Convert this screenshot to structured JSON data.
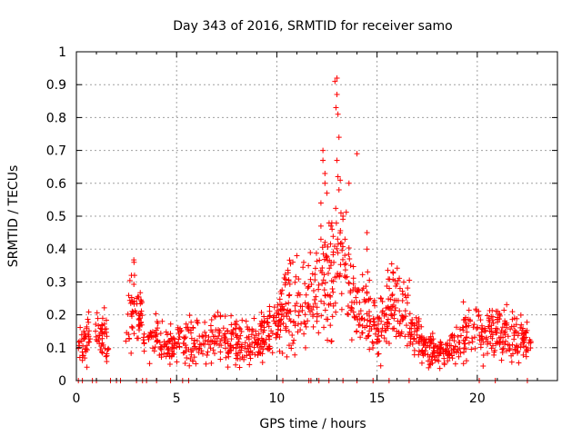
{
  "chart_data": {
    "type": "scatter",
    "title": "Day 343 of 2016, SRMTID for receiver samo",
    "xlabel": "GPS time / hours",
    "ylabel": "SRMTID / TECUs",
    "xlim": [
      0,
      24
    ],
    "ylim": [
      0,
      1
    ],
    "xticks": [
      0,
      5,
      10,
      15,
      20
    ],
    "yticks": [
      0,
      0.1,
      0.2,
      0.3,
      0.4,
      0.5,
      0.6,
      0.7,
      0.8,
      0.9,
      1
    ],
    "xtick_labels": [
      "0",
      "5",
      "10",
      "15",
      "20"
    ],
    "ytick_labels": [
      "0",
      "0.1",
      "0.2",
      "0.3",
      "0.4",
      "0.5",
      "0.6",
      "0.7",
      "0.8",
      "0.9",
      "1"
    ],
    "grid": true,
    "marker": "+",
    "color": "#ff0000",
    "series": [
      {
        "name": "SRMTID",
        "profile_x": [
          0.1,
          0.5,
          1.0,
          1.2,
          1.5,
          2.5,
          2.9,
          3.1,
          3.5,
          4.0,
          4.5,
          5.0,
          5.5,
          6.0,
          6.5,
          7.0,
          7.5,
          8.0,
          8.5,
          9.0,
          9.5,
          10.0,
          10.5,
          11.0,
          11.5,
          12.0,
          12.3,
          12.6,
          13.0,
          13.3,
          13.6,
          14.0,
          14.5,
          15.0,
          15.5,
          15.9,
          16.3,
          16.7,
          17.0,
          17.5,
          18.0,
          18.5,
          19.0,
          19.5,
          20.0,
          20.5,
          21.0,
          21.5,
          22.0,
          22.5
        ],
        "profile_y": [
          0.11,
          0.13,
          0.15,
          0.14,
          0.12,
          0.16,
          0.24,
          0.19,
          0.15,
          0.13,
          0.11,
          0.11,
          0.12,
          0.12,
          0.12,
          0.14,
          0.12,
          0.12,
          0.13,
          0.13,
          0.14,
          0.18,
          0.25,
          0.2,
          0.22,
          0.28,
          0.33,
          0.3,
          0.38,
          0.35,
          0.3,
          0.22,
          0.2,
          0.15,
          0.2,
          0.25,
          0.2,
          0.17,
          0.13,
          0.1,
          0.09,
          0.09,
          0.11,
          0.15,
          0.15,
          0.15,
          0.16,
          0.14,
          0.13,
          0.12
        ],
        "peak_points": [
          {
            "x": 12.9,
            "y": 0.91
          },
          {
            "x": 13.0,
            "y": 0.92
          },
          {
            "x": 13.0,
            "y": 0.87
          },
          {
            "x": 12.95,
            "y": 0.83
          },
          {
            "x": 13.05,
            "y": 0.81
          },
          {
            "x": 13.1,
            "y": 0.74
          },
          {
            "x": 12.3,
            "y": 0.7
          },
          {
            "x": 14.0,
            "y": 0.69
          },
          {
            "x": 12.3,
            "y": 0.67
          },
          {
            "x": 13.0,
            "y": 0.67
          },
          {
            "x": 12.4,
            "y": 0.63
          },
          {
            "x": 12.4,
            "y": 0.6
          },
          {
            "x": 13.05,
            "y": 0.62
          },
          {
            "x": 13.1,
            "y": 0.58
          },
          {
            "x": 12.5,
            "y": 0.57
          },
          {
            "x": 13.6,
            "y": 0.6
          },
          {
            "x": 12.2,
            "y": 0.54
          },
          {
            "x": 13.2,
            "y": 0.51
          },
          {
            "x": 13.3,
            "y": 0.5
          },
          {
            "x": 12.2,
            "y": 0.47
          },
          {
            "x": 12.7,
            "y": 0.47
          },
          {
            "x": 13.4,
            "y": 0.43
          },
          {
            "x": 14.5,
            "y": 0.45
          },
          {
            "x": 14.5,
            "y": 0.4
          },
          {
            "x": 11.0,
            "y": 0.38
          },
          {
            "x": 10.8,
            "y": 0.36
          },
          {
            "x": 15.8,
            "y": 0.33
          },
          {
            "x": 2.9,
            "y": 0.32
          }
        ],
        "zero_x": [
          0.1,
          0.3,
          0.8,
          1.0,
          1.7,
          2.0,
          2.2,
          3.0,
          3.3,
          3.5,
          4.0,
          4.7,
          5.3,
          5.6,
          10.3,
          11.6,
          11.7,
          12.1,
          12.6,
          13.3,
          14.0,
          14.8,
          15.6,
          16.6,
          20.1,
          20.9,
          22.5
        ]
      }
    ]
  }
}
